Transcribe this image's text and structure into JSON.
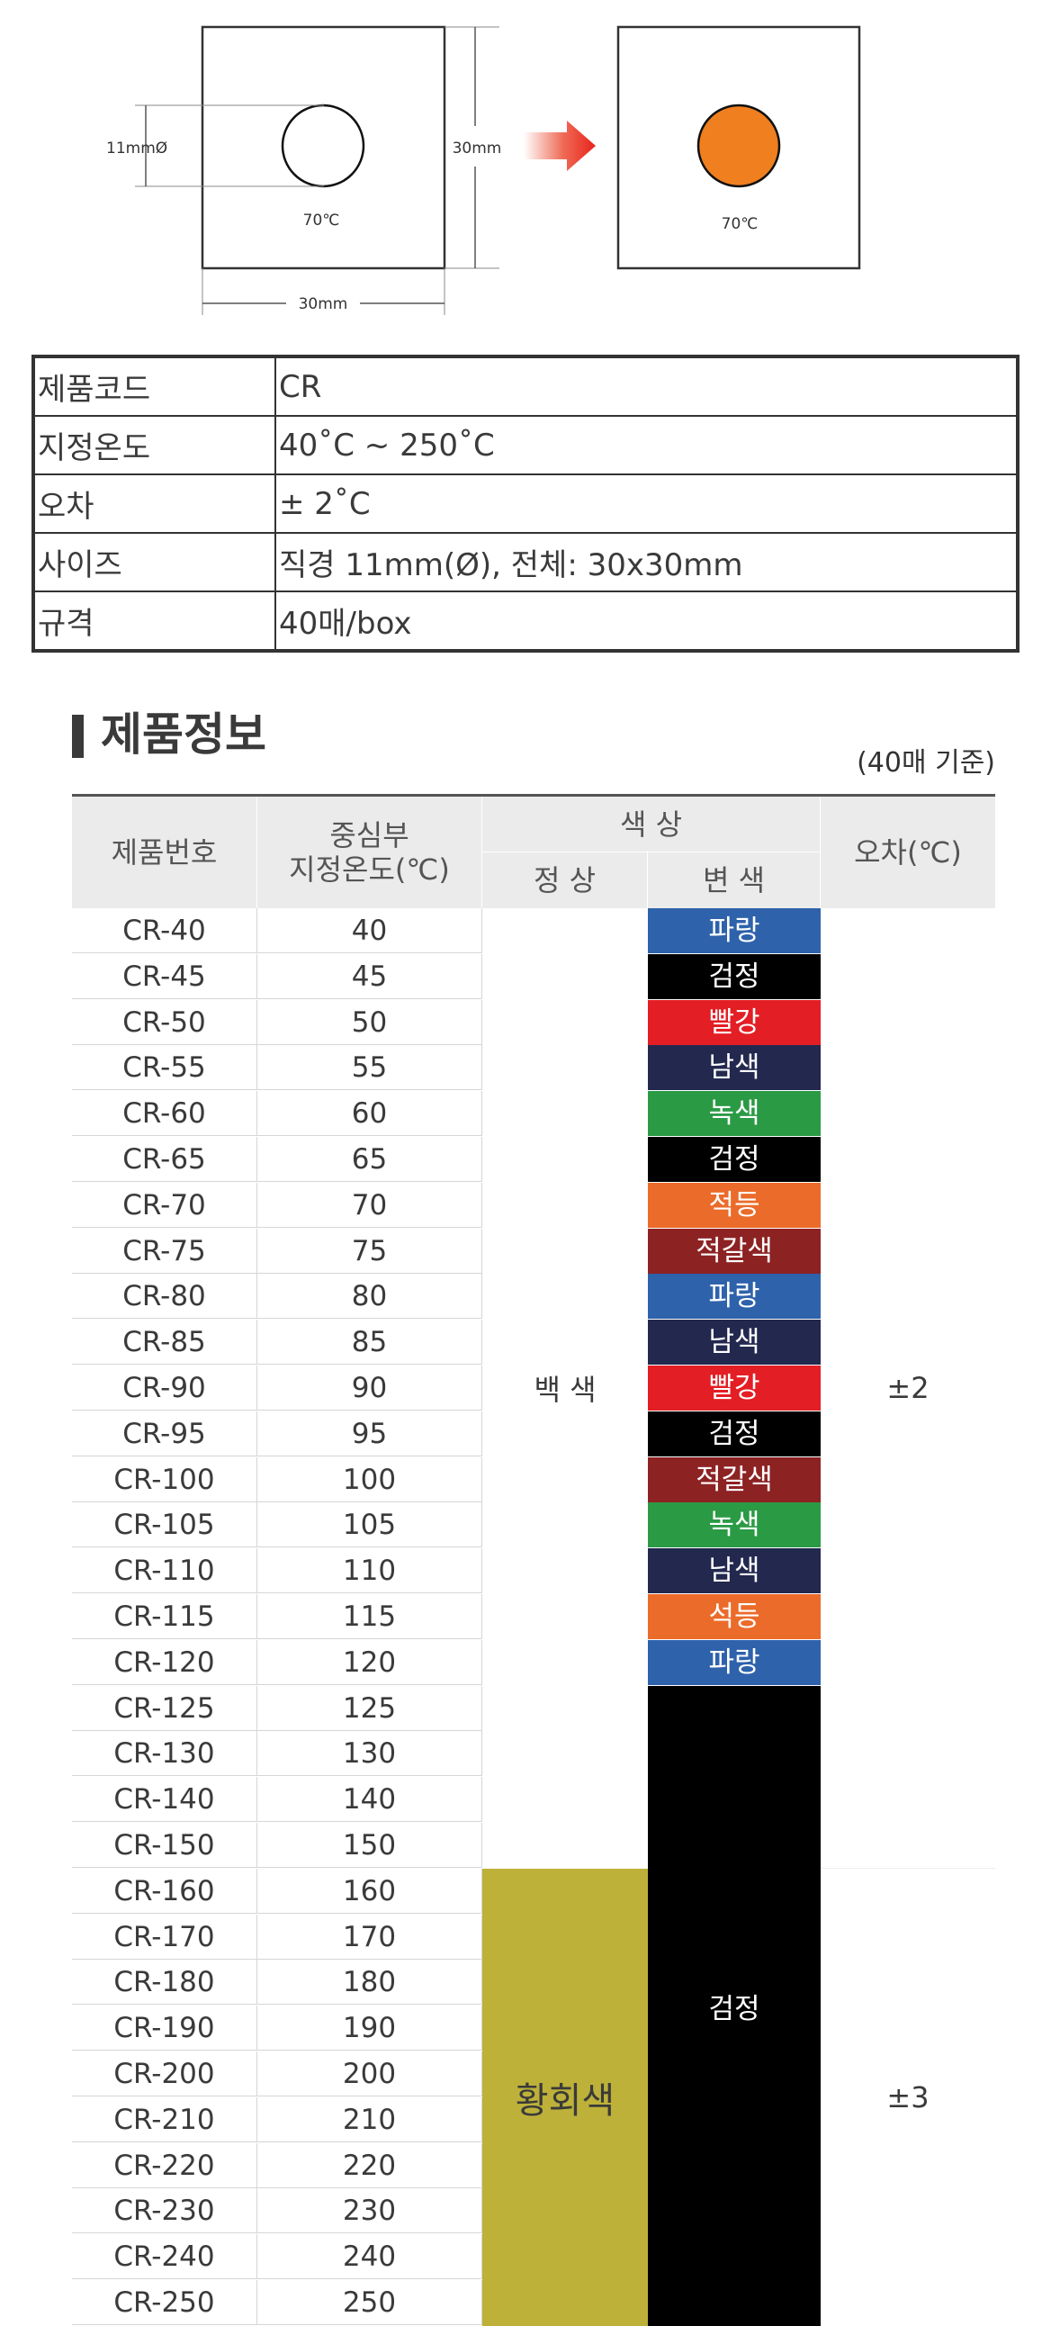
{
  "diagram": {
    "diameter_label": "11mmØ",
    "temp_label_before": "70℃",
    "temp_label_after": "70℃",
    "height_label": "30mm",
    "width_label": "30mm",
    "before_dot_color": "#ffffff",
    "after_dot_color": "#f07f1f",
    "arrow_color": "#e8241c"
  },
  "spec": {
    "rows": [
      {
        "key": "제품코드",
        "value": "CR"
      },
      {
        "key": "지정온도",
        "value": "40˚C ~ 250˚C"
      },
      {
        "key": "오차",
        "value": " ± 2˚C"
      },
      {
        "key": "사이즈",
        "value": "직경 11mm(Ø), 전체: 30x30mm"
      },
      {
        "key": "규격",
        "value": "40매/box"
      }
    ]
  },
  "product": {
    "title": "제품정보",
    "note": "(40매 기준)",
    "headers": {
      "code": "제품번호",
      "temp": "중심부\n지정온도(℃)",
      "color": "색  상",
      "normal": "정 상",
      "changed": "변 색",
      "error": "오차(℃)"
    },
    "rows": [
      {
        "code": "CR-40",
        "temp": "40"
      },
      {
        "code": "CR-45",
        "temp": "45"
      },
      {
        "code": "CR-50",
        "temp": "50"
      },
      {
        "code": "CR-55",
        "temp": "55"
      },
      {
        "code": "CR-60",
        "temp": "60"
      },
      {
        "code": "CR-65",
        "temp": "65"
      },
      {
        "code": "CR-70",
        "temp": "70"
      },
      {
        "code": "CR-75",
        "temp": "75"
      },
      {
        "code": "CR-80",
        "temp": "80"
      },
      {
        "code": "CR-85",
        "temp": "85"
      },
      {
        "code": "CR-90",
        "temp": "90"
      },
      {
        "code": "CR-95",
        "temp": "95"
      },
      {
        "code": "CR-100",
        "temp": "100"
      },
      {
        "code": "CR-105",
        "temp": "105"
      },
      {
        "code": "CR-110",
        "temp": "110"
      },
      {
        "code": "CR-115",
        "temp": "115"
      },
      {
        "code": "CR-120",
        "temp": "120"
      },
      {
        "code": "CR-125",
        "temp": "125"
      },
      {
        "code": "CR-130",
        "temp": "130"
      },
      {
        "code": "CR-140",
        "temp": "140"
      },
      {
        "code": "CR-150",
        "temp": "150"
      },
      {
        "code": "CR-160",
        "temp": "160"
      },
      {
        "code": "CR-170",
        "temp": "170"
      },
      {
        "code": "CR-180",
        "temp": "180"
      },
      {
        "code": "CR-190",
        "temp": "190"
      },
      {
        "code": "CR-200",
        "temp": "200"
      },
      {
        "code": "CR-210",
        "temp": "210"
      },
      {
        "code": "CR-220",
        "temp": "220"
      },
      {
        "code": "CR-230",
        "temp": "230"
      },
      {
        "code": "CR-240",
        "temp": "240"
      },
      {
        "code": "CR-250",
        "temp": "250"
      }
    ],
    "changed_colors": [
      {
        "label": "파랑",
        "color": "#2e62ab"
      },
      {
        "label": "검정",
        "color": "#000000"
      },
      {
        "label": "빨강",
        "color": "#e31e24"
      },
      {
        "label": "남색",
        "color": "#23284f"
      },
      {
        "label": "녹색",
        "color": "#2b9a45"
      },
      {
        "label": "검정",
        "color": "#000000"
      },
      {
        "label": "적등",
        "color": "#eb6b2a"
      },
      {
        "label": "적갈색",
        "color": "#8d2223"
      },
      {
        "label": "파랑",
        "color": "#2e62ab"
      },
      {
        "label": "남색",
        "color": "#23284f"
      },
      {
        "label": "빨강",
        "color": "#e31e24"
      },
      {
        "label": "검정",
        "color": "#000000"
      },
      {
        "label": "적갈색",
        "color": "#8d2223"
      },
      {
        "label": "녹색",
        "color": "#2b9a45"
      },
      {
        "label": "남색",
        "color": "#23284f"
      },
      {
        "label": "석등",
        "color": "#eb6b2a"
      },
      {
        "label": "파랑",
        "color": "#2e62ab"
      }
    ],
    "changed_black_label": "검정",
    "changed_black_color": "#000000",
    "normal_white_label": "백 색",
    "normal_yellow_label": "황회색",
    "normal_yellow_color": "#bdb139",
    "error_group1": "±2",
    "error_group2": "±3"
  }
}
